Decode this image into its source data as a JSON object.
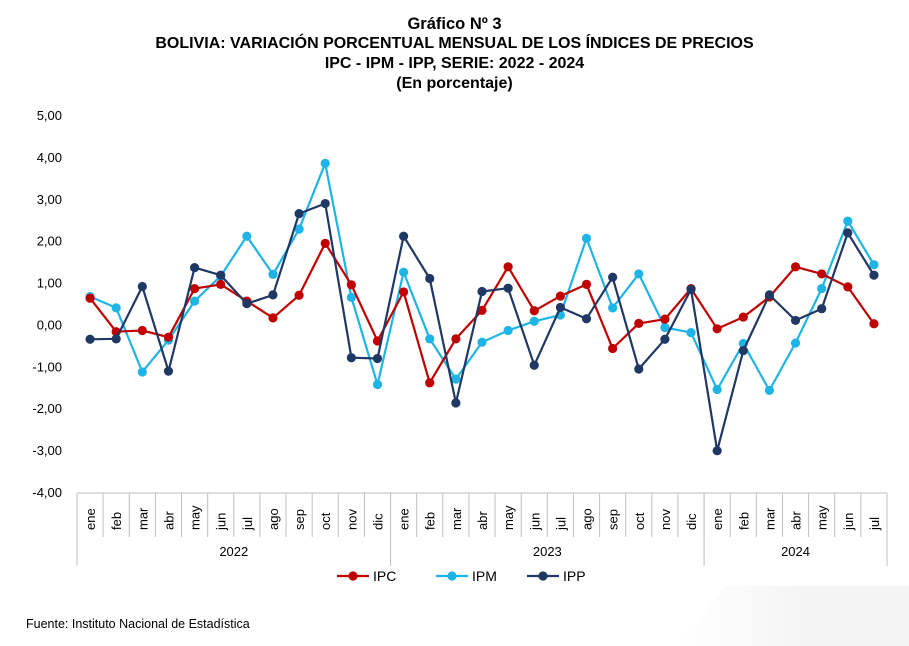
{
  "title_lines": [
    "Gráfico Nº 3",
    "BOLIVIA: VARIACIÓN PORCENTUAL MENSUAL DE LOS ÍNDICES DE PRECIOS",
    "IPC - IPM - IPP, SERIE: 2022 - 2024",
    "(En porcentaje)"
  ],
  "source": "Fuente: Instituto Nacional de Estadística",
  "chart_data": {
    "type": "line",
    "categories": [
      "ene",
      "feb",
      "mar",
      "abr",
      "may",
      "jun",
      "jul",
      "ago",
      "sep",
      "oct",
      "nov",
      "dic",
      "ene",
      "feb",
      "mar",
      "abr",
      "may",
      "jun",
      "jul",
      "ago",
      "sep",
      "oct",
      "nov",
      "dic",
      "ene",
      "feb",
      "mar",
      "abr",
      "may",
      "jun",
      "jul"
    ],
    "groups": [
      {
        "label": "2022",
        "count": 12
      },
      {
        "label": "2023",
        "count": 12
      },
      {
        "label": "2024",
        "count": 7
      }
    ],
    "y_ticks": [
      "5,00",
      "4,00",
      "3,00",
      "2,00",
      "1,00",
      "0,00",
      "-1,00",
      "-2,00",
      "-3,00",
      "-4,00"
    ],
    "ylim": [
      -4,
      5
    ],
    "legend_position": "bottom",
    "series": [
      {
        "name": "IPC",
        "color": "#c00000",
        "values": [
          0.65,
          -0.15,
          -0.12,
          -0.28,
          0.88,
          0.98,
          0.58,
          0.18,
          0.72,
          1.96,
          0.97,
          -0.37,
          0.8,
          -1.37,
          -0.32,
          0.36,
          1.4,
          0.35,
          0.7,
          0.98,
          -0.55,
          0.05,
          0.15,
          0.88,
          -0.08,
          0.2,
          0.68,
          1.4,
          1.23,
          0.92,
          0.04
        ]
      },
      {
        "name": "IPM",
        "color": "#1fb4e6",
        "values": [
          0.69,
          0.42,
          -1.11,
          -0.35,
          0.58,
          1.18,
          2.13,
          1.22,
          2.3,
          3.87,
          0.67,
          -1.41,
          1.27,
          -0.32,
          -1.28,
          -0.4,
          -0.12,
          0.1,
          0.25,
          2.08,
          0.42,
          1.23,
          -0.05,
          -0.17,
          -1.53,
          -0.43,
          -1.55,
          -0.42,
          0.88,
          2.49,
          1.45
        ]
      },
      {
        "name": "IPP",
        "color": "#1f3864",
        "values": [
          -0.33,
          -0.32,
          0.93,
          -1.09,
          1.38,
          1.2,
          0.52,
          0.73,
          2.67,
          2.91,
          -0.77,
          -0.79,
          2.13,
          1.12,
          -1.85,
          0.81,
          0.89,
          -0.95,
          0.43,
          0.16,
          1.15,
          -1.04,
          -0.33,
          0.86,
          -2.99,
          -0.6,
          0.73,
          0.12,
          0.4,
          2.21,
          1.2
        ]
      }
    ]
  }
}
